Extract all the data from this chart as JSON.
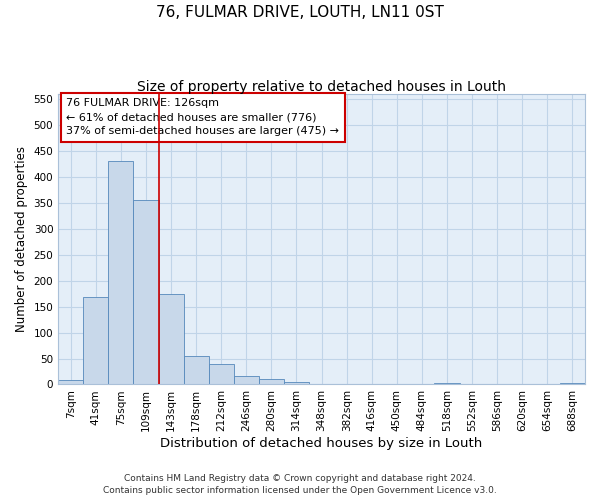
{
  "title": "76, FULMAR DRIVE, LOUTH, LN11 0ST",
  "subtitle": "Size of property relative to detached houses in Louth",
  "xlabel": "Distribution of detached houses by size in Louth",
  "ylabel": "Number of detached properties",
  "categories": [
    "7sqm",
    "41sqm",
    "75sqm",
    "109sqm",
    "143sqm",
    "178sqm",
    "212sqm",
    "246sqm",
    "280sqm",
    "314sqm",
    "348sqm",
    "382sqm",
    "416sqm",
    "450sqm",
    "484sqm",
    "518sqm",
    "552sqm",
    "586sqm",
    "620sqm",
    "654sqm",
    "688sqm"
  ],
  "values": [
    8,
    168,
    430,
    356,
    175,
    55,
    40,
    17,
    11,
    5,
    1,
    0,
    0,
    0,
    0,
    2,
    0,
    0,
    0,
    0,
    3
  ],
  "bar_color": "#c8d8ea",
  "bar_edge_color": "#5588bb",
  "grid_color": "#c0d4e8",
  "background_color": "#e4eef8",
  "vline_color": "#cc0000",
  "vline_x": 3.5,
  "annotation_line1": "76 FULMAR DRIVE: 126sqm",
  "annotation_line2": "← 61% of detached houses are smaller (776)",
  "annotation_line3": "37% of semi-detached houses are larger (475) →",
  "annotation_box_facecolor": "#ffffff",
  "annotation_box_edgecolor": "#cc0000",
  "ylim": [
    0,
    560
  ],
  "yticks": [
    0,
    50,
    100,
    150,
    200,
    250,
    300,
    350,
    400,
    450,
    500,
    550
  ],
  "footer_line1": "Contains HM Land Registry data © Crown copyright and database right 2024.",
  "footer_line2": "Contains public sector information licensed under the Open Government Licence v3.0.",
  "title_fontsize": 11,
  "subtitle_fontsize": 10,
  "xlabel_fontsize": 9.5,
  "ylabel_fontsize": 8.5,
  "tick_fontsize": 7.5,
  "annot_fontsize": 8,
  "footer_fontsize": 6.5
}
